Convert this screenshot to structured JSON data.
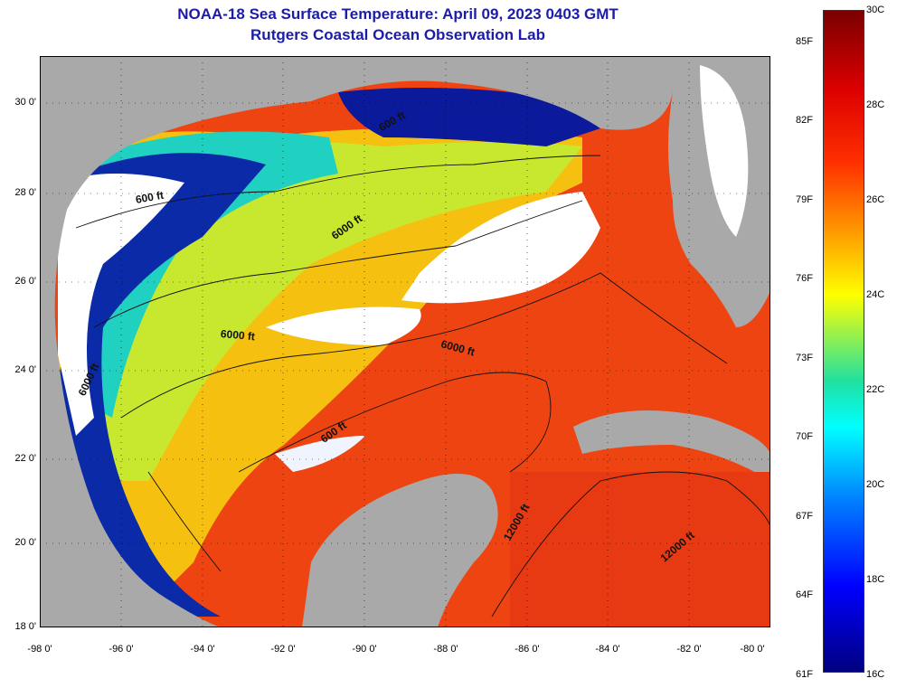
{
  "title": "NOAA-18 Sea Surface Temperature:  April 09, 2023 0403 GMT",
  "subtitle": "Rutgers Coastal Ocean Observation Lab",
  "lat_labels": [
    "30 0'",
    "28 0'",
    "26 0'",
    "24 0'",
    "22 0'",
    "20 0'",
    "18 0'"
  ],
  "lon_labels": [
    "-98 0'",
    "-96 0'",
    "-94 0'",
    "-92 0'",
    "-90 0'",
    "-88 0'",
    "-86 0'",
    "-84 0'",
    "-82 0'",
    "-80 0'"
  ],
  "colorbar": {
    "fahrenheit_labels": [
      "85F",
      "82F",
      "79F",
      "76F",
      "73F",
      "70F",
      "67F",
      "64F",
      "61F"
    ],
    "celsius_labels": [
      "30C",
      "28C",
      "26C",
      "24C",
      "22C",
      "20C",
      "18C",
      "16C"
    ],
    "range_c": [
      16,
      30
    ],
    "range_f": [
      61,
      86
    ]
  },
  "contour_labels": [
    "600 ft",
    "600 ft",
    "6000 ft",
    "6000 ft",
    "6000 ft",
    "6000 ft",
    "600 ft",
    "12000 ft",
    "12000 ft"
  ],
  "map_extent": {
    "lon": [
      -98,
      -80
    ],
    "lat": [
      18,
      31
    ]
  },
  "colors": {
    "land": "#a9a9a9",
    "cloud": "#ffffff",
    "title": "#1c1ca8",
    "warm": "#ee4010",
    "cold": "#0a1a9a"
  }
}
